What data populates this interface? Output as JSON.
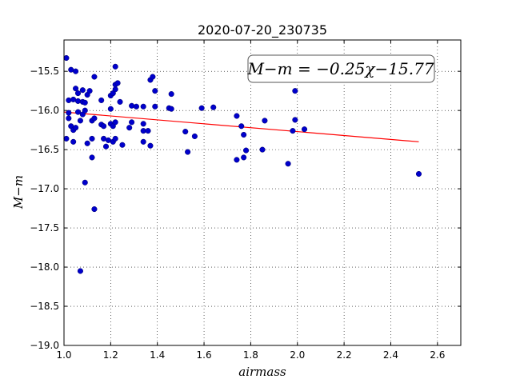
{
  "chart_data": {
    "type": "scatter",
    "title": "2020-07-20_230735",
    "xlabel": "airmass",
    "ylabel": "M−m",
    "xlim": [
      1.0,
      2.7
    ],
    "ylim": [
      -19.0,
      -15.1
    ],
    "y_inverted": true,
    "grid": true,
    "x_ticks": [
      "1.0",
      "1.2",
      "1.4",
      "1.6",
      "1.8",
      "2.0",
      "2.2",
      "2.4",
      "2.6"
    ],
    "x_tick_values": [
      1.0,
      1.2,
      1.4,
      1.6,
      1.8,
      2.0,
      2.2,
      2.4,
      2.6
    ],
    "y_ticks": [
      "−15.5",
      "−16.0",
      "−16.5",
      "−17.0",
      "−17.5",
      "−18.0",
      "−18.5",
      "−19.0"
    ],
    "y_tick_values": [
      -15.5,
      -16.0,
      -16.5,
      -17.0,
      -17.5,
      -18.0,
      -18.5,
      -19.0
    ],
    "annotation": "M−m = −0.25χ−15.77",
    "annotation_position": "top-right",
    "fit": {
      "slope": -0.25,
      "intercept": -15.77,
      "x_range": [
        1.0,
        2.52
      ],
      "color": "#ff0000"
    },
    "point_color": "#0000cc",
    "points": [
      [
        1.01,
        -15.33
      ],
      [
        1.02,
        -15.87
      ],
      [
        1.03,
        -15.48
      ],
      [
        1.04,
        -15.86
      ],
      [
        1.05,
        -15.72
      ],
      [
        1.05,
        -15.5
      ],
      [
        1.06,
        -15.78
      ],
      [
        1.06,
        -15.88
      ],
      [
        1.08,
        -15.89
      ],
      [
        1.08,
        -15.74
      ],
      [
        1.09,
        -15.9
      ],
      [
        1.1,
        -15.8
      ],
      [
        1.11,
        -15.75
      ],
      [
        1.13,
        -15.57
      ],
      [
        1.01,
        -16.36
      ],
      [
        1.02,
        -16.1
      ],
      [
        1.02,
        -16.03
      ],
      [
        1.03,
        -16.2
      ],
      [
        1.04,
        -16.25
      ],
      [
        1.04,
        -16.4
      ],
      [
        1.05,
        -16.22
      ],
      [
        1.06,
        -16.02
      ],
      [
        1.07,
        -16.13
      ],
      [
        1.08,
        -16.05
      ],
      [
        1.09,
        -16.0
      ],
      [
        1.1,
        -16.42
      ],
      [
        1.12,
        -16.36
      ],
      [
        1.12,
        -16.13
      ],
      [
        1.13,
        -16.1
      ],
      [
        1.12,
        -16.6
      ],
      [
        1.09,
        -16.92
      ],
      [
        1.13,
        -17.26
      ],
      [
        1.07,
        -18.05
      ],
      [
        1.16,
        -15.87
      ],
      [
        1.16,
        -16.18
      ],
      [
        1.17,
        -16.2
      ],
      [
        1.17,
        -16.36
      ],
      [
        1.18,
        -16.46
      ],
      [
        1.19,
        -16.38
      ],
      [
        1.2,
        -15.98
      ],
      [
        1.2,
        -15.81
      ],
      [
        1.21,
        -15.78
      ],
      [
        1.22,
        -15.73
      ],
      [
        1.22,
        -15.44
      ],
      [
        1.22,
        -15.67
      ],
      [
        1.23,
        -15.65
      ],
      [
        1.24,
        -15.89
      ],
      [
        1.2,
        -16.17
      ],
      [
        1.21,
        -16.2
      ],
      [
        1.22,
        -16.15
      ],
      [
        1.21,
        -16.4
      ],
      [
        1.22,
        -16.36
      ],
      [
        1.25,
        -16.44
      ],
      [
        1.28,
        -16.22
      ],
      [
        1.29,
        -15.94
      ],
      [
        1.29,
        -16.15
      ],
      [
        1.31,
        -15.95
      ],
      [
        1.34,
        -15.95
      ],
      [
        1.34,
        -16.17
      ],
      [
        1.34,
        -16.4
      ],
      [
        1.34,
        -16.26
      ],
      [
        1.36,
        -16.26
      ],
      [
        1.37,
        -15.61
      ],
      [
        1.37,
        -16.45
      ],
      [
        1.38,
        -15.57
      ],
      [
        1.39,
        -15.95
      ],
      [
        1.39,
        -15.75
      ],
      [
        1.45,
        -15.97
      ],
      [
        1.46,
        -15.98
      ],
      [
        1.46,
        -15.79
      ],
      [
        1.52,
        -16.27
      ],
      [
        1.53,
        -16.53
      ],
      [
        1.56,
        -16.33
      ],
      [
        1.59,
        -15.97
      ],
      [
        1.64,
        -15.96
      ],
      [
        1.74,
        -16.07
      ],
      [
        1.74,
        -16.63
      ],
      [
        1.76,
        -16.2
      ],
      [
        1.77,
        -16.31
      ],
      [
        1.77,
        -16.6
      ],
      [
        1.78,
        -16.51
      ],
      [
        1.85,
        -16.5
      ],
      [
        1.86,
        -16.13
      ],
      [
        1.96,
        -16.68
      ],
      [
        1.98,
        -16.26
      ],
      [
        1.99,
        -16.12
      ],
      [
        1.99,
        -15.75
      ],
      [
        2.03,
        -16.24
      ],
      [
        2.52,
        -16.81
      ]
    ]
  }
}
